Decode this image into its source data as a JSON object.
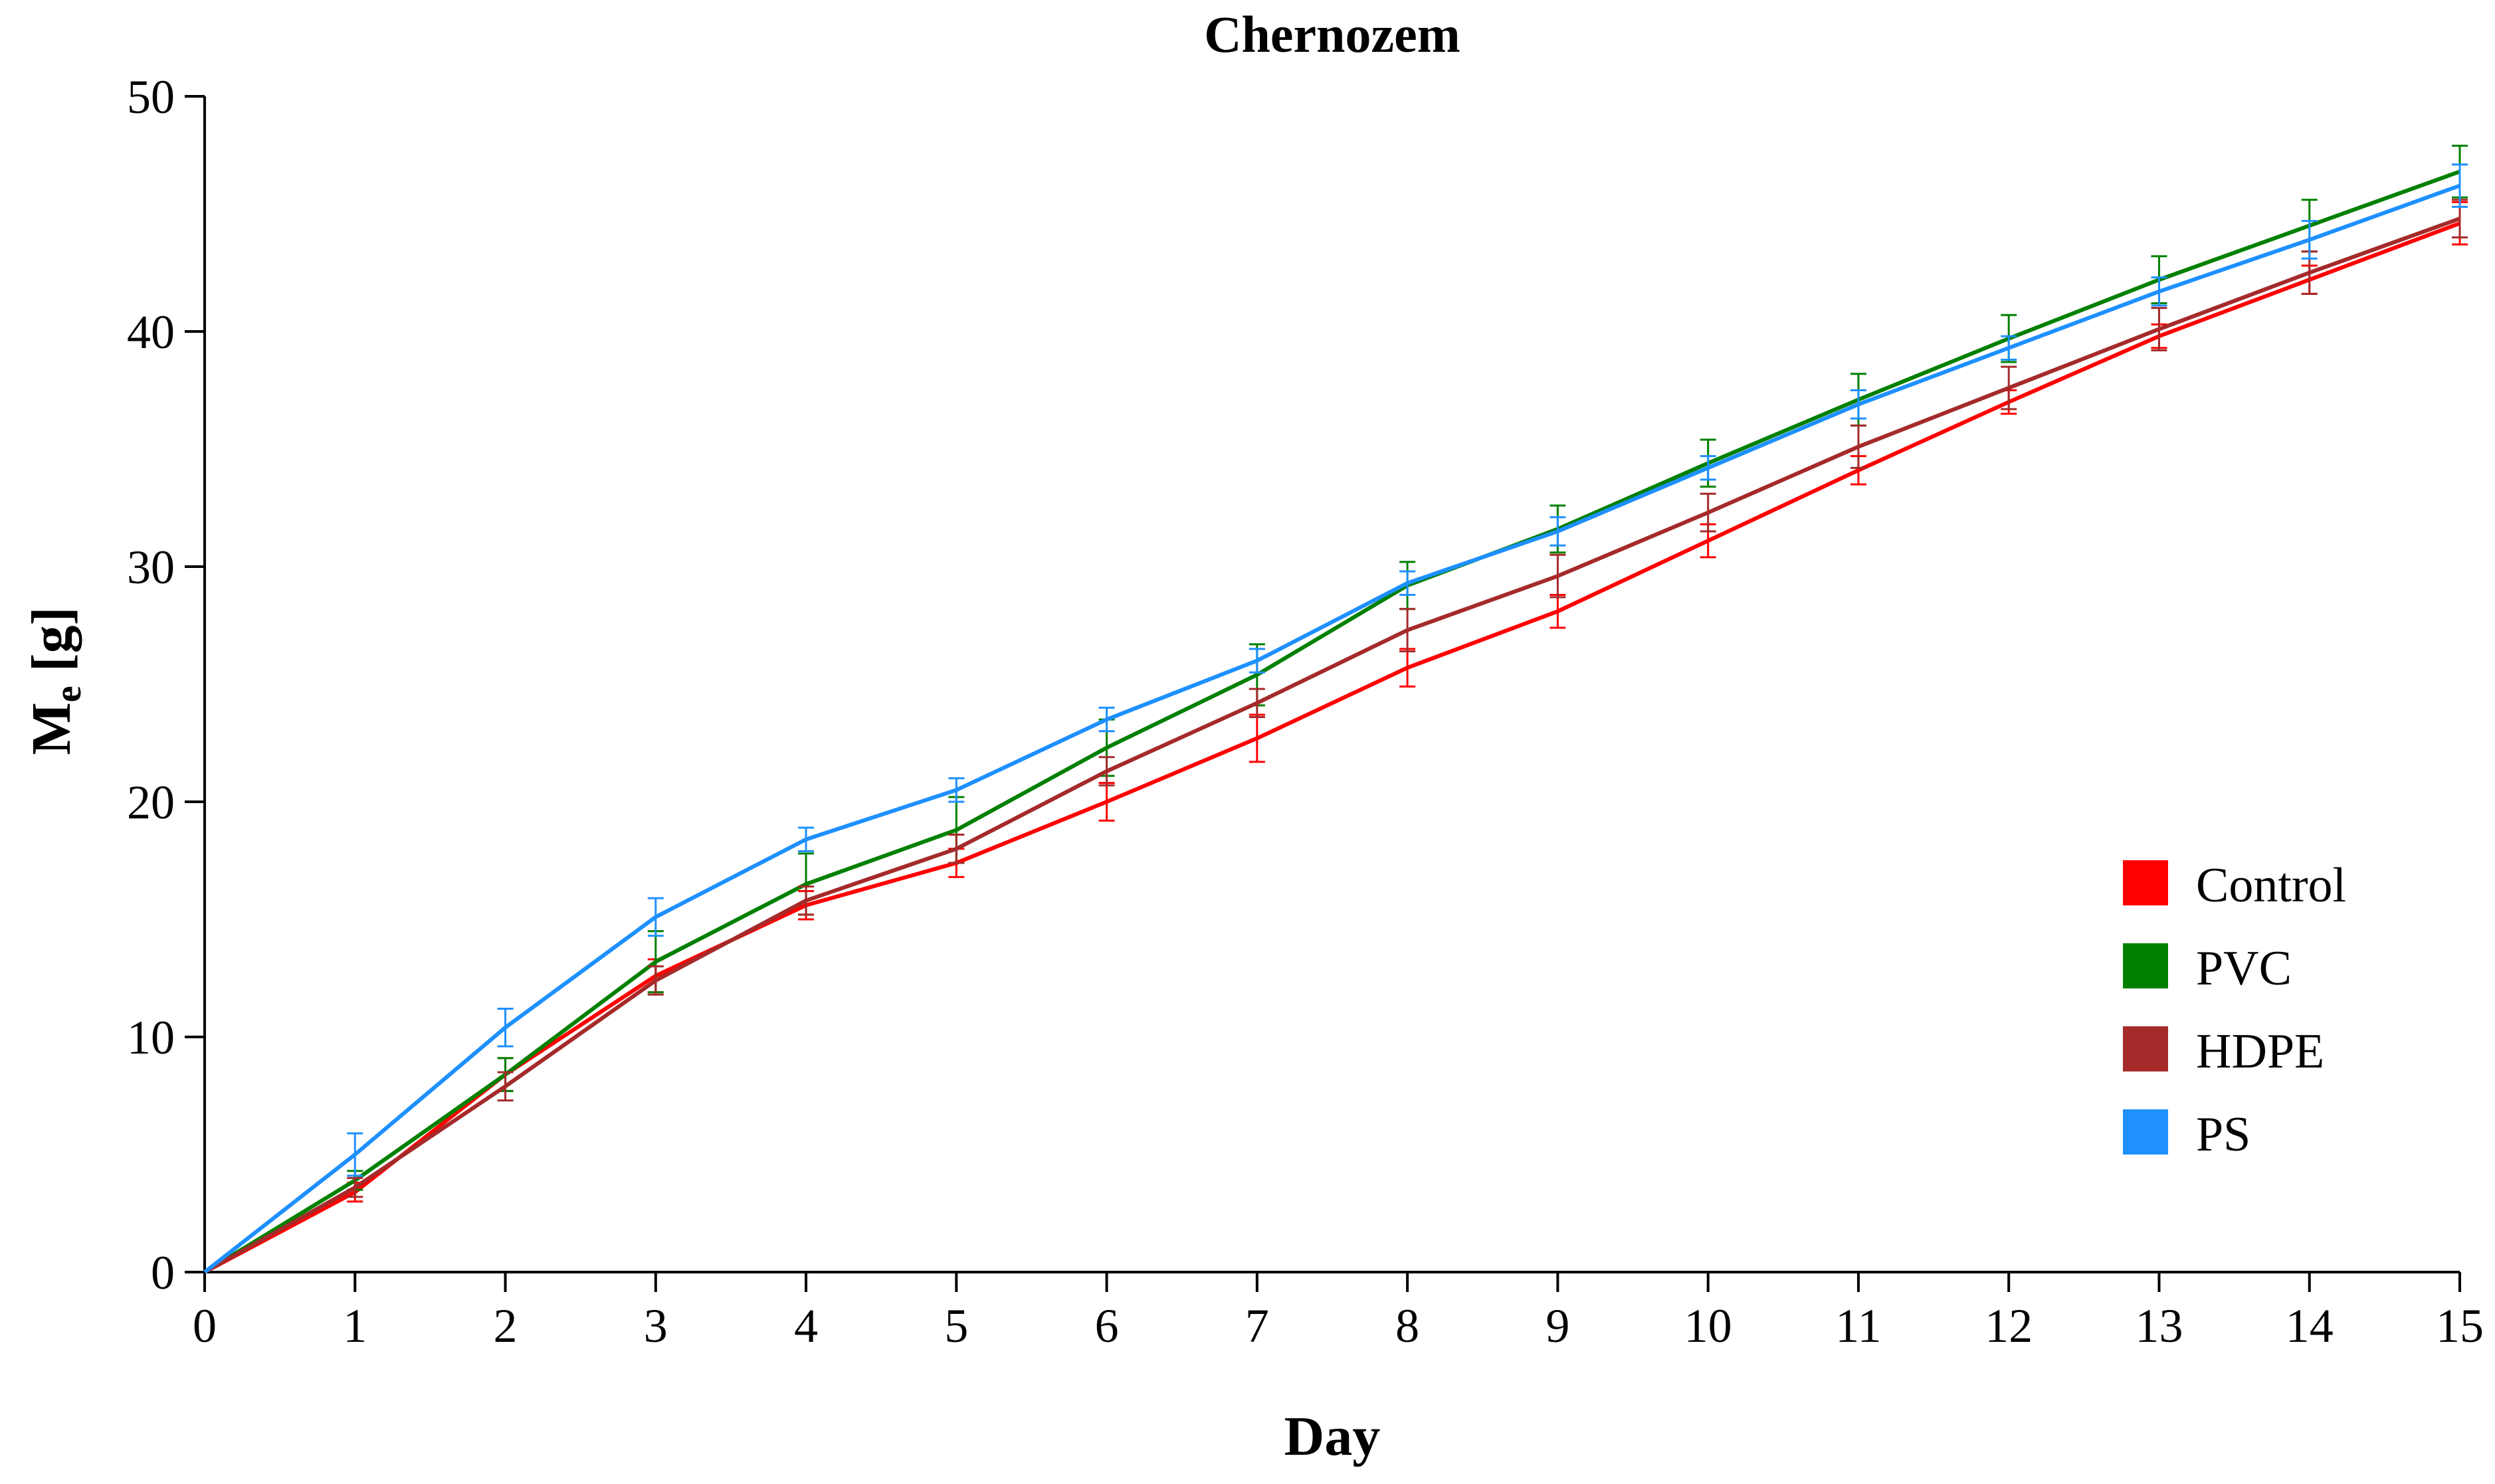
{
  "chart_data": {
    "type": "line",
    "title": "Chernozem",
    "xlabel": "Day",
    "ylabel": {
      "main": "M",
      "sub": "e",
      "unit": " [g]"
    },
    "xlim": [
      0,
      15
    ],
    "ylim": [
      0,
      50
    ],
    "x_ticks": [
      0,
      1,
      2,
      3,
      4,
      5,
      6,
      7,
      8,
      9,
      10,
      11,
      12,
      13,
      14,
      15
    ],
    "y_ticks": [
      0,
      10,
      20,
      30,
      40,
      50
    ],
    "x": [
      0,
      1,
      2,
      3,
      4,
      5,
      6,
      7,
      8,
      9,
      10,
      11,
      12,
      13,
      14,
      15
    ],
    "grid": false,
    "legend_position": "right",
    "series": [
      {
        "name": "Control",
        "color": "#ff0000",
        "values": [
          0,
          3.4,
          8.4,
          12.6,
          15.6,
          17.4,
          20.0,
          22.7,
          25.7,
          28.1,
          31.1,
          34.1,
          37.0,
          39.8,
          42.2,
          44.6
        ],
        "errors": [
          0,
          0.4,
          0.7,
          0.7,
          0.6,
          0.6,
          0.8,
          1.0,
          0.8,
          0.7,
          0.7,
          0.6,
          0.5,
          0.5,
          0.6,
          0.9
        ]
      },
      {
        "name": "PVC",
        "color": "#008000",
        "values": [
          0,
          3.9,
          8.4,
          13.2,
          16.5,
          18.8,
          22.3,
          25.4,
          29.2,
          31.6,
          34.4,
          37.1,
          39.7,
          42.2,
          44.5,
          46.8
        ],
        "errors": [
          0,
          0.4,
          0.7,
          1.3,
          1.3,
          1.4,
          1.2,
          1.3,
          1.0,
          1.0,
          1.0,
          1.1,
          1.0,
          1.0,
          1.1,
          1.1
        ]
      },
      {
        "name": "HDPE",
        "color": "#a52a2a",
        "values": [
          0,
          3.6,
          7.9,
          12.4,
          15.8,
          18.0,
          21.3,
          24.2,
          27.3,
          29.6,
          32.3,
          35.1,
          37.6,
          40.1,
          42.5,
          44.8
        ],
        "errors": [
          0,
          0.4,
          0.6,
          0.6,
          0.6,
          0.6,
          0.6,
          0.6,
          0.9,
          0.9,
          0.8,
          0.9,
          0.9,
          0.9,
          0.9,
          0.8
        ]
      },
      {
        "name": "PS",
        "color": "#1e90ff",
        "values": [
          0,
          5.0,
          10.4,
          15.1,
          18.4,
          20.5,
          23.5,
          26.0,
          29.3,
          31.5,
          34.2,
          36.9,
          39.3,
          41.7,
          43.9,
          46.2
        ],
        "errors": [
          0,
          0.9,
          0.8,
          0.8,
          0.5,
          0.5,
          0.5,
          0.5,
          0.5,
          0.6,
          0.5,
          0.6,
          0.5,
          0.6,
          0.8,
          0.9
        ]
      }
    ]
  }
}
